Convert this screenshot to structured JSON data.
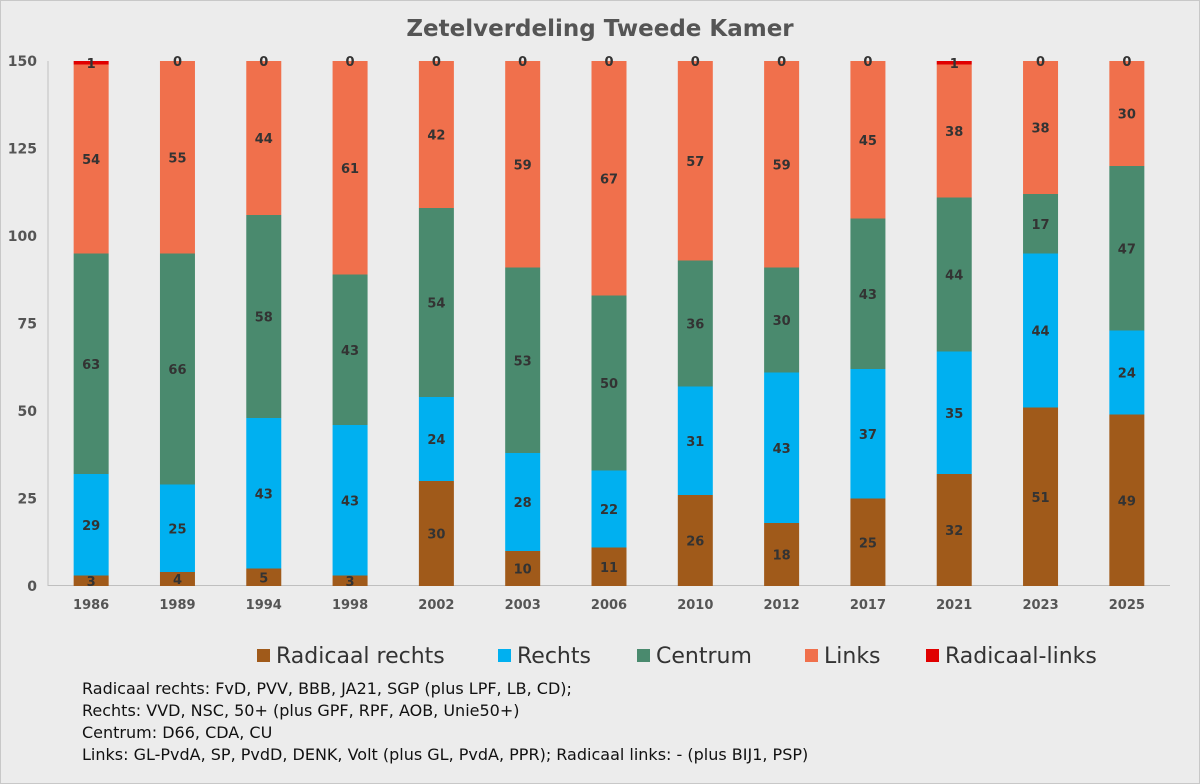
{
  "chart_data": {
    "type": "bar",
    "stacked": true,
    "title": "Zetelverdeling Tweede Kamer",
    "xlabel": "",
    "ylabel": "",
    "ylim": [
      0,
      150
    ],
    "yticks": [
      0,
      25,
      50,
      75,
      100,
      125,
      150
    ],
    "grid": false,
    "legend_position": "bottom",
    "categories": [
      "1986",
      "1989",
      "1994",
      "1998",
      "2002",
      "2003",
      "2006",
      "2010",
      "2012",
      "2017",
      "2021",
      "2023",
      "2025"
    ],
    "series": [
      {
        "name": "Radicaal rechts",
        "color": "#a05a1a",
        "values": [
          3,
          4,
          5,
          3,
          30,
          10,
          11,
          26,
          18,
          25,
          32,
          51,
          49
        ]
      },
      {
        "name": "Rechts",
        "color": "#00b0f0",
        "values": [
          29,
          25,
          43,
          43,
          24,
          28,
          22,
          31,
          43,
          37,
          35,
          44,
          24
        ]
      },
      {
        "name": "Centrum",
        "color": "#4a8a6e",
        "values": [
          63,
          66,
          58,
          43,
          54,
          53,
          50,
          36,
          30,
          43,
          44,
          17,
          47
        ]
      },
      {
        "name": "Links",
        "color": "#f0704c",
        "values": [
          54,
          55,
          44,
          61,
          42,
          59,
          67,
          57,
          59,
          45,
          38,
          38,
          30
        ]
      },
      {
        "name": "Radicaal-links",
        "color": "#e00000",
        "values": [
          1,
          0,
          0,
          0,
          0,
          0,
          0,
          0,
          0,
          0,
          1,
          0,
          0
        ]
      }
    ]
  },
  "notes": [
    "Radicaal rechts: FvD, PVV, BBB, JA21, SGP (plus LPF, LB, CD);",
    "Rechts: VVD, NSC, 50+ (plus GPF, RPF, AOB, Unie50+)",
    "Centrum: D66, CDA, CU",
    "Links: GL-PvdA, SP, PvdD, DENK, Volt (plus GL, PvdA, PPR); Radicaal links: - (plus BIJ1, PSP)"
  ]
}
